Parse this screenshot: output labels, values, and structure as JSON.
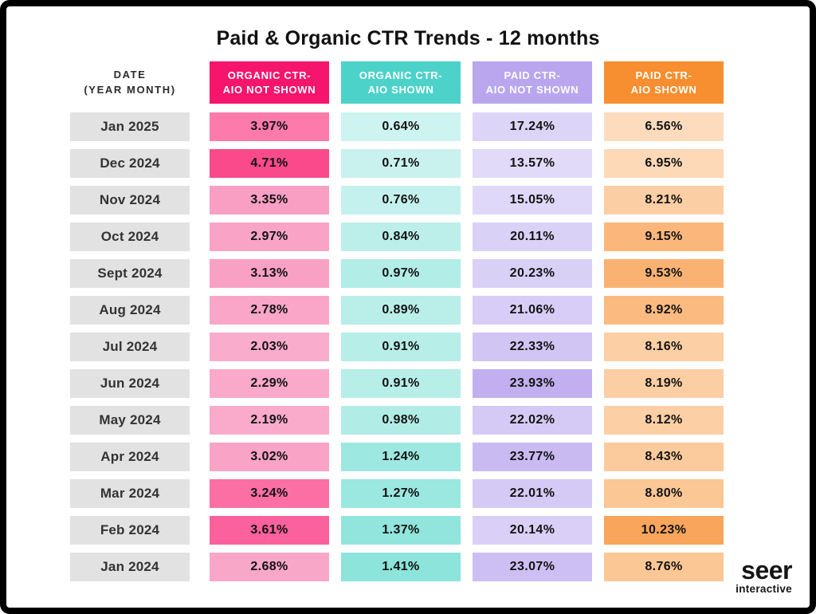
{
  "title": "Paid & Organic CTR Trends - 12 months",
  "table": {
    "date_header": "DATE\n(YEAR MONTH)",
    "date_cell_bg": "#E3E2E2",
    "columns": [
      {
        "key": "organic-ctr-aio-not-shown",
        "label": "ORGANIC CTR-\nAIO NOT SHOWN",
        "color": "#F5156C"
      },
      {
        "key": "organic-ctr-aio-shown",
        "label": "ORGANIC CTR-\nAIO SHOWN",
        "color": "#4DD2C9"
      },
      {
        "key": "paid-ctr-aio-not-shown",
        "label": "PAID CTR-\nAIO NOT SHOWN",
        "color": "#B9A6EF"
      },
      {
        "key": "paid-ctr-aio-shown",
        "label": "PAID CTR-\nAIO SHOWN",
        "color": "#F78E2F"
      }
    ]
  },
  "chart_data": {
    "type": "heatmap",
    "title": "Paid & Organic CTR Trends - 12 months",
    "unit": "%",
    "value_format": "0.00%",
    "legend_position": "top",
    "categories": [
      "Jan 2025",
      "Dec 2024",
      "Nov 2024",
      "Oct 2024",
      "Sept 2024",
      "Aug 2024",
      "Jul 2024",
      "Jun 2024",
      "May 2024",
      "Apr 2024",
      "Mar 2024",
      "Feb 2024",
      "Jan 2024"
    ],
    "series": [
      {
        "name": "Organic CTR - AIO Not Shown",
        "values": [
          3.97,
          4.71,
          3.35,
          2.97,
          3.13,
          2.78,
          2.03,
          2.29,
          2.19,
          3.02,
          3.24,
          3.61,
          2.68
        ],
        "colors": [
          "#FC7BAB",
          "#FA4A8B",
          "#F99FC4",
          "#F9A4C7",
          "#F9A1C5",
          "#F9A6C8",
          "#FAACCC",
          "#FAA9CA",
          "#FAAACB",
          "#F9A3C6",
          "#FB6FA4",
          "#FB619C",
          "#F9A7C9"
        ]
      },
      {
        "name": "Organic CTR - AIO Shown",
        "values": [
          0.64,
          0.71,
          0.76,
          0.84,
          0.97,
          0.89,
          0.91,
          0.91,
          0.98,
          1.24,
          1.27,
          1.37,
          1.41
        ],
        "colors": [
          "#CDF4F0",
          "#C9F2EE",
          "#C4F1ED",
          "#BDEFEA",
          "#B2EDE7",
          "#B9EEE9",
          "#B7EEE8",
          "#B7EEE8",
          "#B1EDE6",
          "#9DE8E1",
          "#9BE8E0",
          "#91E5DC",
          "#8CE4DA"
        ]
      },
      {
        "name": "Paid CTR - AIO Not Shown",
        "values": [
          17.24,
          13.57,
          15.05,
          20.11,
          20.23,
          21.06,
          22.33,
          23.93,
          22.02,
          23.77,
          22.01,
          20.14,
          23.07
        ],
        "colors": [
          "#DDD5F8",
          "#E1DBF9",
          "#DFD8F8",
          "#DAD1F7",
          "#D9D0F6",
          "#D7CDF6",
          "#D1C5F4",
          "#C2AFEF",
          "#D5CAF5",
          "#C9BAF2",
          "#D5CAF5",
          "#DAD0F7",
          "#CDBFF3"
        ]
      },
      {
        "name": "Paid CTR - AIO Shown",
        "values": [
          6.56,
          6.95,
          8.21,
          9.15,
          9.53,
          8.92,
          8.16,
          8.19,
          8.12,
          8.43,
          8.8,
          10.23,
          8.76
        ],
        "colors": [
          "#FDDCBD",
          "#FDD9B7",
          "#FCCEA3",
          "#FBB77B",
          "#FAB273",
          "#FBBA80",
          "#FCCFA4",
          "#FCCEA3",
          "#FCCFA5",
          "#FCCB9D",
          "#FBC794",
          "#F9A55B",
          "#FBC795"
        ]
      }
    ]
  },
  "branding": {
    "logo_main": "seer",
    "logo_sub": "interactive"
  }
}
